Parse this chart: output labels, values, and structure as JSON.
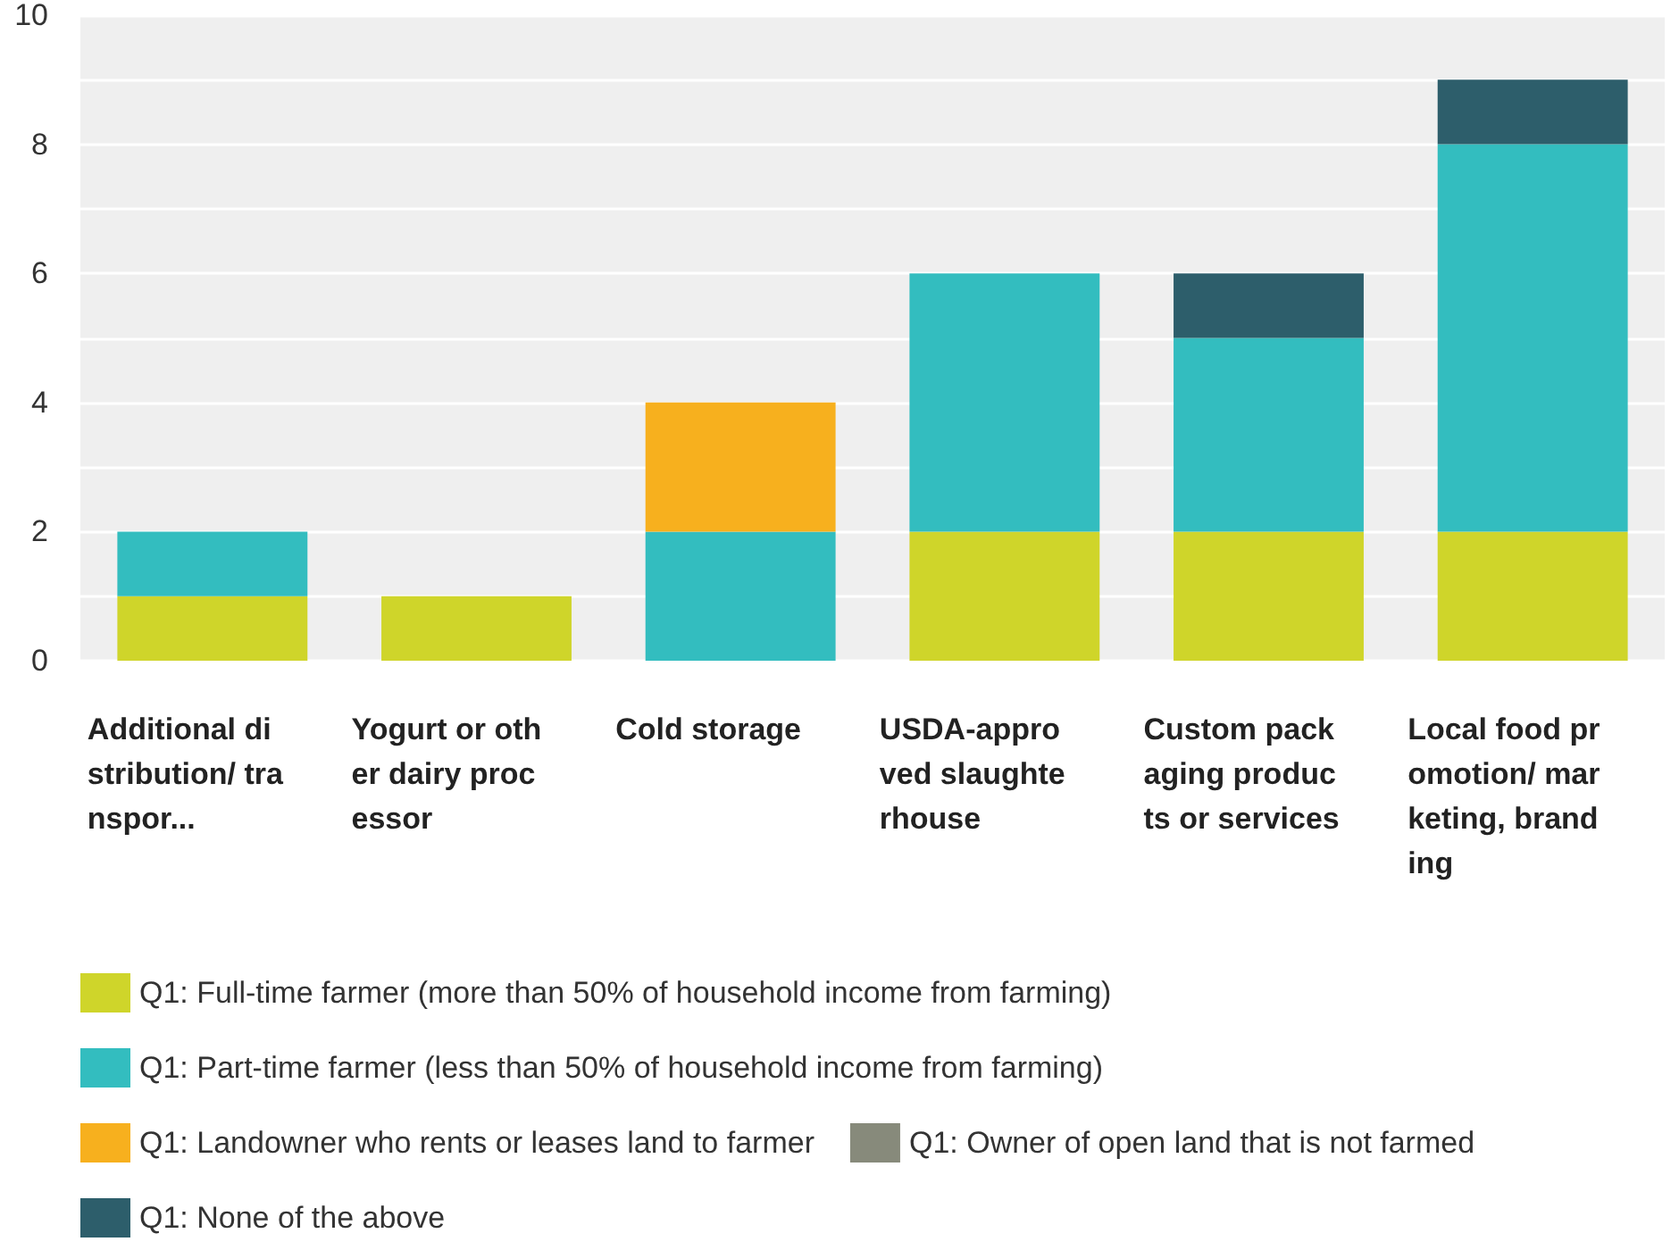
{
  "chart_data": {
    "type": "bar",
    "stacked": true,
    "categories": [
      "Additional distribution/ transpor...",
      "Yogurt or other dairy processor",
      "Cold storage",
      "USDA-approved slaughterhouse",
      "Custom packaging products or services",
      "Local food promotion/ marketing, branding"
    ],
    "series": [
      {
        "name": "Q1: Full-time farmer (more than 50% of household income from farming)",
        "color": "#cfd52a",
        "values": [
          1,
          1,
          0,
          2,
          2,
          2
        ]
      },
      {
        "name": "Q1: Part-time farmer (less than 50% of household income from farming)",
        "color": "#33bdbf",
        "values": [
          1,
          0,
          2,
          4,
          3,
          6
        ]
      },
      {
        "name": "Q1: Landowner who rents or leases land to farmer",
        "color": "#f7b01e",
        "values": [
          0,
          0,
          2,
          0,
          0,
          0
        ]
      },
      {
        "name": "Q1: Owner of open land that is not farmed",
        "color": "#878a7b",
        "values": [
          0,
          0,
          0,
          0,
          0,
          0
        ]
      },
      {
        "name": "Q1: None of the above",
        "color": "#2d5e6b",
        "values": [
          0,
          0,
          0,
          0,
          1,
          1
        ]
      }
    ],
    "ylim": [
      0,
      10
    ],
    "yticks": [
      0,
      {
        "value": 1,
        "label": null
      },
      2,
      {
        "value": 3,
        "label": null
      },
      4,
      {
        "value": 5,
        "label": null
      },
      6,
      {
        "value": 7,
        "label": null
      },
      8,
      {
        "value": 9,
        "label": null
      },
      10
    ],
    "grid": true,
    "legend": "bottom"
  }
}
